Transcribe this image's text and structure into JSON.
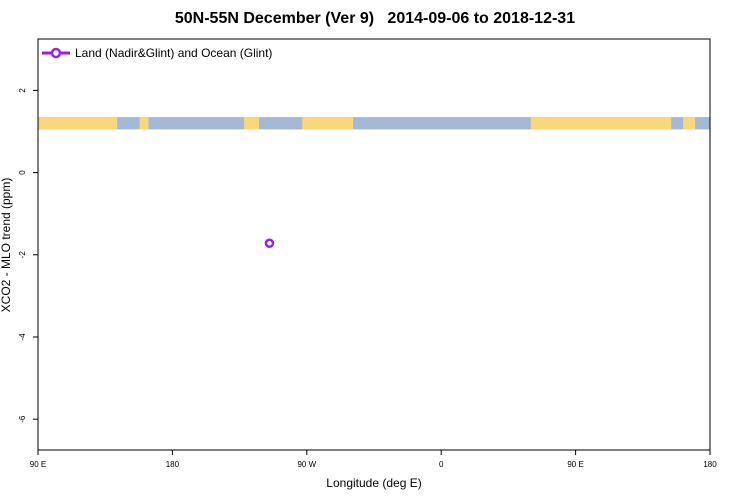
{
  "chart_data": {
    "type": "scatter",
    "title": "50N-55N December (Ver 9)   2014-09-06 to 2018-12-31",
    "xlabel": "Longitude (deg E)",
    "ylabel": "XCO2 - MLO trend (ppm)",
    "x_ticks": [
      {
        "value": 90,
        "label": "90 E"
      },
      {
        "value": 180,
        "label": "180"
      },
      {
        "value": 270,
        "label": "90 W"
      },
      {
        "value": 360,
        "label": "0"
      },
      {
        "value": 450,
        "label": "90 E"
      },
      {
        "value": 540,
        "label": "180"
      }
    ],
    "y_ticks": [
      {
        "value": 2,
        "label": "2"
      },
      {
        "value": 0,
        "label": "0"
      },
      {
        "value": -2,
        "label": "-2"
      },
      {
        "value": -4,
        "label": "-4"
      },
      {
        "value": -6,
        "label": "-6"
      }
    ],
    "xlim": [
      90,
      540
    ],
    "ylim": [
      -6.75,
      3.25
    ],
    "legend_position": "top-left",
    "series": [
      {
        "name": "Land (Nadir&Glint) and Ocean (Glint)",
        "color": "#9b1fe8",
        "marker": "open-circle",
        "points": [
          {
            "x": 245,
            "y": -1.72
          }
        ]
      }
    ],
    "land_ocean_strip": {
      "y_range": [
        1.05,
        1.35
      ],
      "ocean_color": "#a4b8d8",
      "land_color": "#fad77a",
      "land_segments": [
        [
          90,
          143
        ],
        [
          158,
          164
        ],
        [
          228,
          238
        ],
        [
          267,
          301
        ],
        [
          420,
          514
        ],
        [
          522,
          530
        ]
      ]
    }
  }
}
